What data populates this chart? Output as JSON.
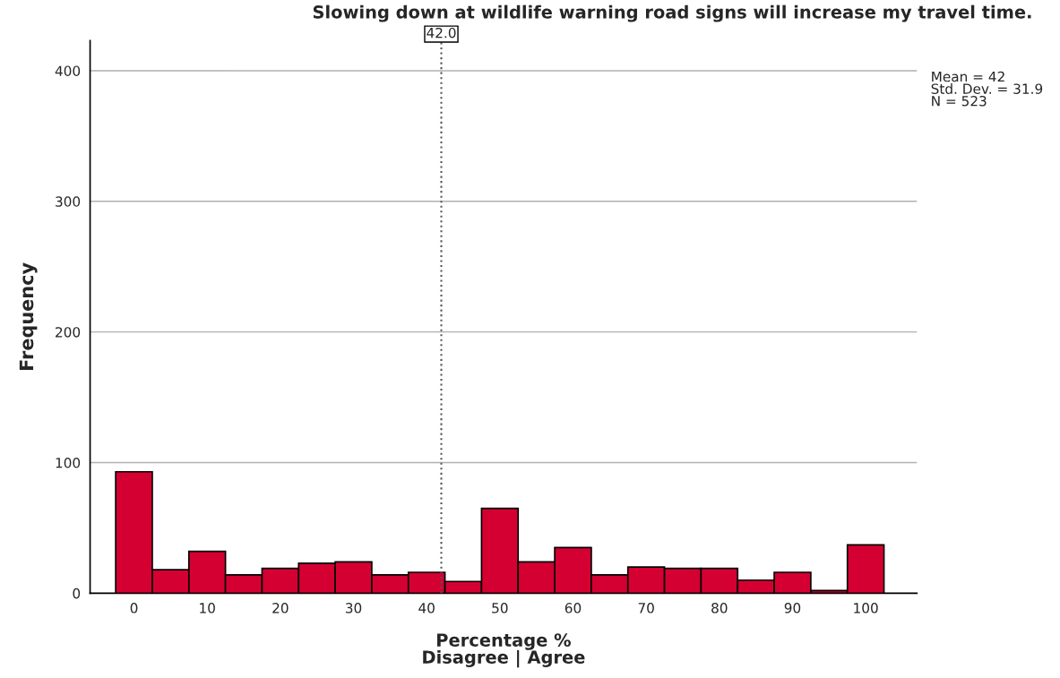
{
  "chart_data": {
    "type": "histogram",
    "title": "Slowing down at wildlife warning road signs will increase my travel time.",
    "xlabel": "Percentage %\nDisagree | Agree",
    "ylabel": "Frequency",
    "bins": [
      -2.5,
      2.5,
      7.5,
      12.5,
      17.5,
      22.5,
      27.5,
      32.5,
      37.5,
      42.5,
      47.5,
      52.5,
      57.5,
      62.5,
      67.5,
      72.5,
      77.5,
      82.5,
      87.5,
      92.5,
      97.5,
      102.5
    ],
    "values": [
      93,
      18,
      32,
      14,
      19,
      23,
      24,
      14,
      16,
      9,
      65,
      24,
      35,
      14,
      20,
      19,
      19,
      10,
      16,
      2,
      37
    ],
    "color": "#d50032",
    "xlim": [
      -6,
      107
    ],
    "xticks": [
      0,
      10,
      20,
      30,
      40,
      50,
      60,
      70,
      80,
      90,
      100
    ],
    "ylim": [
      0,
      423
    ],
    "yticks": [
      0,
      100,
      200,
      300,
      400
    ],
    "grid": "y",
    "ref_lines": [
      {
        "axis": "x",
        "value": 42.0,
        "label": "42.0",
        "line_style": "dotted"
      }
    ],
    "annotations": [
      "Mean = 42\nStd. Dev. = 31.9\nN = 523"
    ]
  }
}
